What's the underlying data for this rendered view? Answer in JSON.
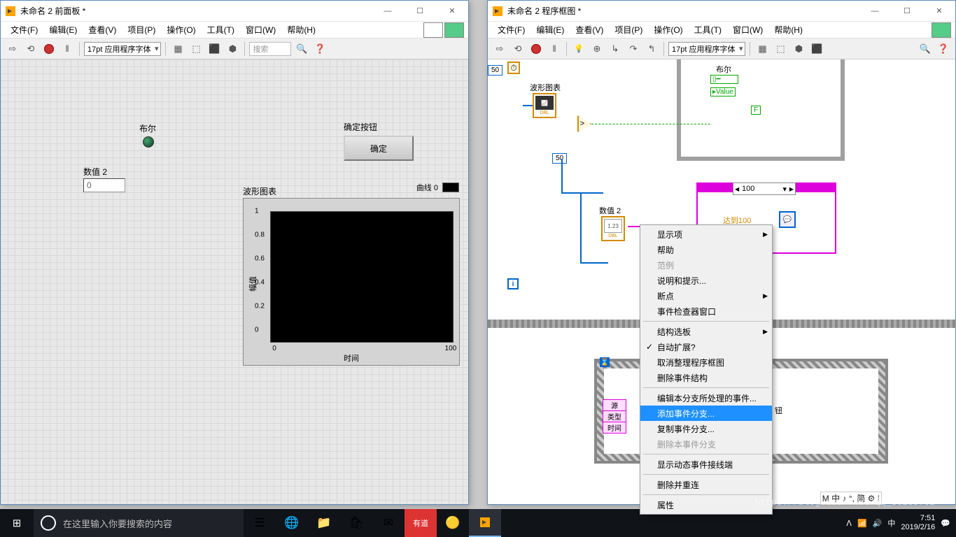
{
  "front": {
    "title": "未命名 2 前面板 *",
    "menus": [
      "文件(F)",
      "编辑(E)",
      "查看(V)",
      "项目(P)",
      "操作(O)",
      "工具(T)",
      "窗口(W)",
      "帮助(H)"
    ],
    "font": "17pt 应用程序字体",
    "search_ph": "搜索",
    "bool_label": "布尔",
    "ok_group": "确定按钮",
    "ok_label": "确定",
    "num_label": "数值 2",
    "num_value": "0",
    "chart_label": "波形图表",
    "legend": "曲线 0",
    "ylabel": "幅值",
    "xlabel": "时间",
    "xticks": [
      "0",
      "100"
    ],
    "yticks": [
      "0",
      "0.2",
      "0.4",
      "0.6",
      "0.8",
      "1"
    ]
  },
  "bd": {
    "title": "未命名 2 程序框图 *",
    "menus": [
      "文件(F)",
      "编辑(E)",
      "查看(V)",
      "项目(P)",
      "操作(O)",
      "工具(T)",
      "窗口(W)",
      "帮助(H)"
    ],
    "font": "17pt 应用程序字体",
    "const50a": "50",
    "const50b": "50",
    "chart_label": "波形图表",
    "bool_label": "布尔",
    "value": "Value",
    "Fconst": "F",
    "num2_label": "数值 2",
    "num2_icon": "1.23",
    "case100": "100",
    "case100label": "达到100",
    "iter": "i",
    "event_src": "源",
    "event_type": "类型",
    "event_time": "时间",
    "hidden": "钮"
  },
  "ctx": {
    "items": [
      {
        "label": "显示项",
        "sub": true
      },
      {
        "label": "帮助"
      },
      {
        "label": "范例",
        "disabled": true
      },
      {
        "label": "说明和提示..."
      },
      {
        "label": "断点",
        "sub": true
      },
      {
        "label": "事件检查器窗口"
      },
      {
        "sep": true
      },
      {
        "label": "结构选板",
        "sub": true
      },
      {
        "label": "自动扩展?",
        "checked": true
      },
      {
        "label": "取消整理程序框图"
      },
      {
        "label": "删除事件结构"
      },
      {
        "sep": true
      },
      {
        "label": "编辑本分支所处理的事件..."
      },
      {
        "label": "添加事件分支...",
        "selected": true
      },
      {
        "label": "复制事件分支..."
      },
      {
        "label": "删除本事件分支",
        "disabled": true
      },
      {
        "sep": true
      },
      {
        "label": "显示动态事件接线端"
      },
      {
        "sep": true
      },
      {
        "label": "删除并重连"
      },
      {
        "sep": true
      },
      {
        "label": "属性"
      }
    ]
  },
  "taskbar": {
    "search_ph": "在这里输入你要搜索的内容",
    "time": "7:51",
    "date": "2019/2/16"
  },
  "watermark": "https://blog.csdn.net/qq_36139702"
}
